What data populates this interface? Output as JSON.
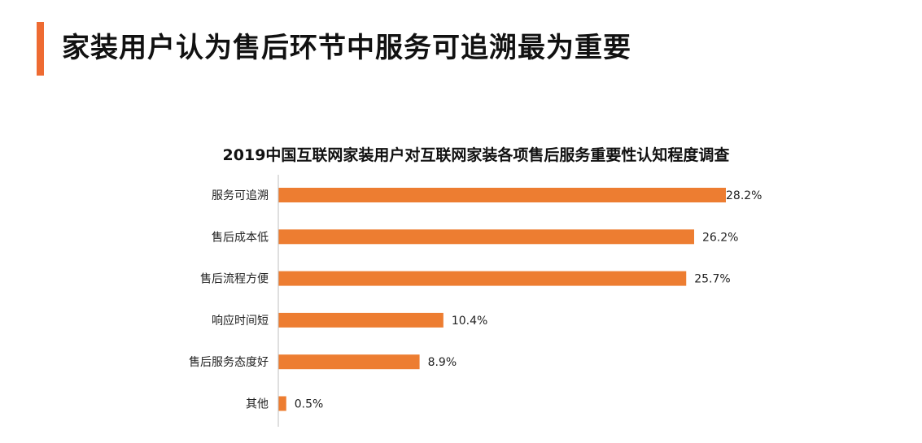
{
  "page": {
    "title": "家装用户认为售后环节中服务可追溯最为重要"
  },
  "colors": {
    "accent": "#ee6b32",
    "bar": "#ed7d31",
    "axis": "#bfbfbf"
  },
  "chart_data": {
    "type": "bar",
    "orientation": "horizontal",
    "title": "2019中国互联网家装用户对互联网家装各项售后服务重要性认知程度调查",
    "xlabel": "",
    "ylabel": "",
    "value_format": "percent",
    "xlim": [
      0,
      28.2
    ],
    "grid": false,
    "legend": "none",
    "categories": [
      "服务可追溯",
      "售后成本低",
      "售后流程方便",
      "响应时间短",
      "售后服务态度好",
      "其他"
    ],
    "values": [
      28.2,
      26.2,
      25.7,
      10.4,
      8.9,
      0.5
    ],
    "value_labels": [
      "28.2%",
      "26.2%",
      "25.7%",
      "10.4%",
      "8.9%",
      "0.5%"
    ]
  }
}
